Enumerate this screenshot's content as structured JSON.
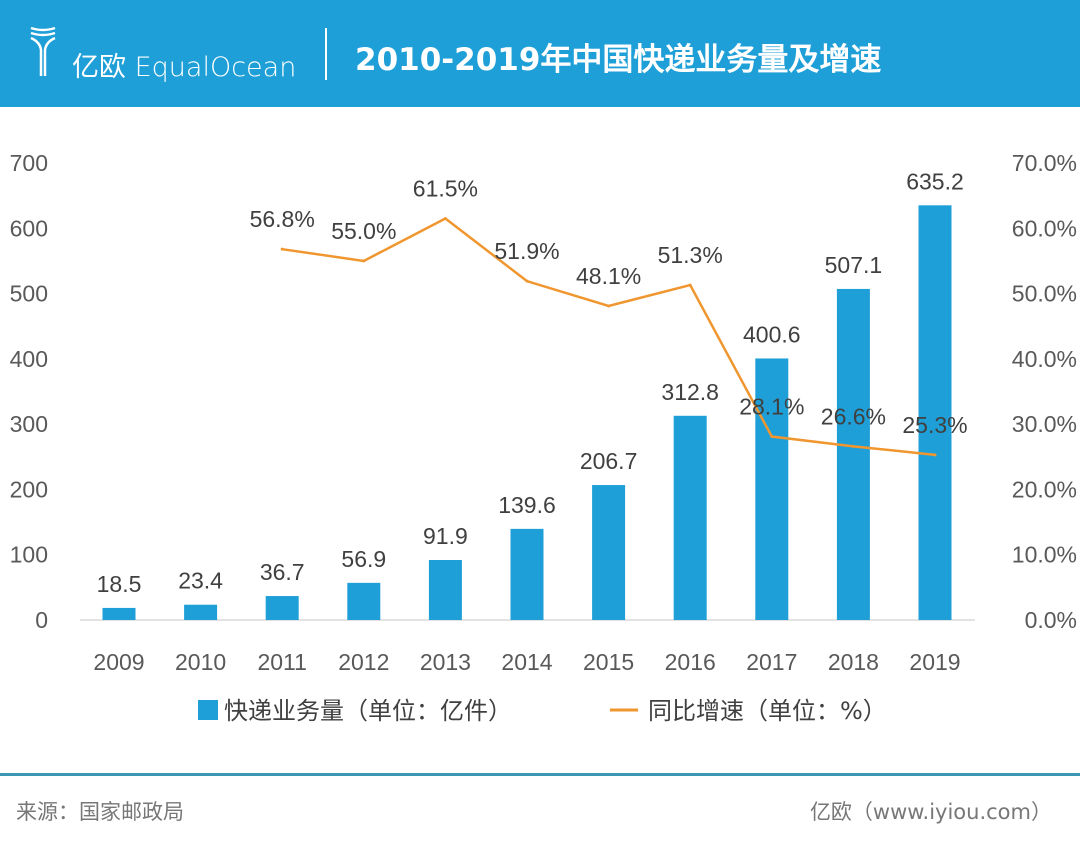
{
  "header": {
    "logo_text": "亿欧 EqualOcean",
    "title": "2010-2019年中国快递业务量及增速",
    "background_color": "#1f9fd7"
  },
  "chart_data": {
    "type": "bar+line",
    "categories": [
      "2009",
      "2010",
      "2011",
      "2012",
      "2013",
      "2014",
      "2015",
      "2016",
      "2017",
      "2018",
      "2019"
    ],
    "series": [
      {
        "name": "快递业务量（单位：亿件）",
        "type": "bar",
        "axis": "left",
        "color": "#1f9fd7",
        "values": [
          18.5,
          23.4,
          36.7,
          56.9,
          91.9,
          139.6,
          206.7,
          312.8,
          400.6,
          507.1,
          635.2
        ],
        "labels": [
          "18.5",
          "23.4",
          "36.7",
          "56.9",
          "91.9",
          "139.6",
          "206.7",
          "312.8",
          "400.6",
          "507.1",
          "635.2"
        ]
      },
      {
        "name": "同比增速（单位：%）",
        "type": "line",
        "axis": "right",
        "color": "#f0962e",
        "values": [
          null,
          null,
          56.8,
          55.0,
          61.5,
          51.9,
          48.1,
          51.3,
          28.1,
          26.6,
          25.3
        ],
        "labels": [
          "",
          "",
          "56.8%",
          "55.0%",
          "61.5%",
          "51.9%",
          "48.1%",
          "51.3%",
          "28.1%",
          "26.6%",
          "25.3%"
        ]
      }
    ],
    "y_left": {
      "range": [
        0,
        700
      ],
      "ticks": [
        "0",
        "100",
        "200",
        "300",
        "400",
        "500",
        "600",
        "700"
      ]
    },
    "y_right": {
      "range": [
        0,
        70
      ],
      "ticks": [
        "0.0%",
        "10.0%",
        "20.0%",
        "30.0%",
        "40.0%",
        "50.0%",
        "60.0%",
        "70.0%"
      ]
    },
    "grid": false,
    "legend_position": "bottom"
  },
  "footer": {
    "source": "来源：国家邮政局",
    "credit": "亿欧（www.iyiou.com）"
  }
}
